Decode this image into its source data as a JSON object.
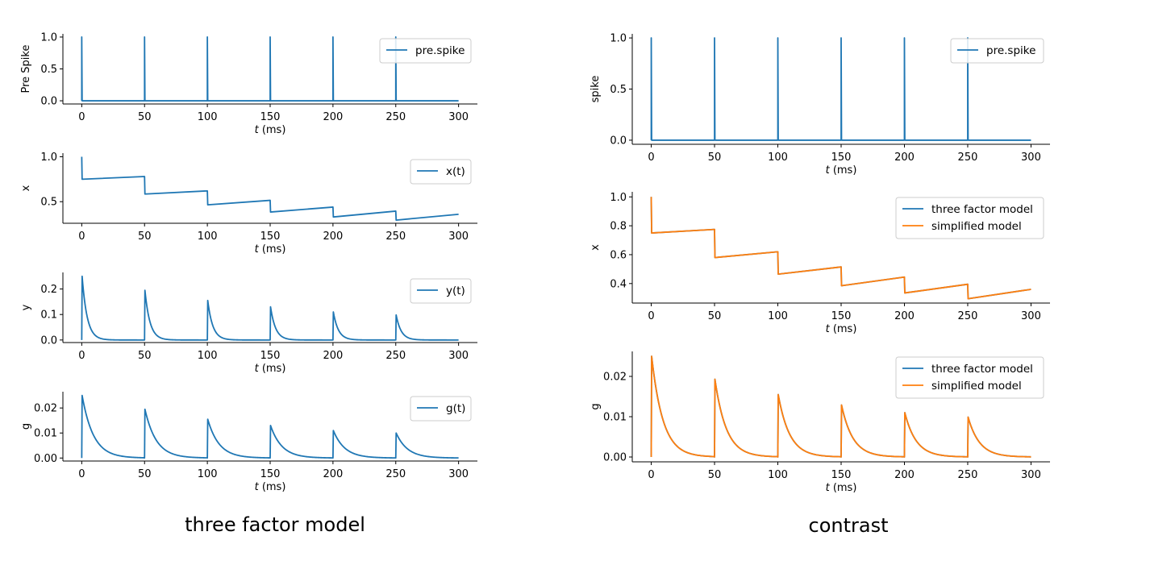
{
  "captions": {
    "left": "three factor model",
    "right": "contrast"
  },
  "colors": {
    "blue": "#1f77b4",
    "orange": "#ff7f0e"
  },
  "chart_data": [
    {
      "id": "left-pre-spike",
      "type": "line",
      "xlabel_var": "t",
      "xlabel_unit": " (ms)",
      "ylabel": "Pre Spike",
      "xlim": [
        -15,
        315
      ],
      "ylim": [
        -0.05,
        1.05
      ],
      "xticks": [
        0,
        50,
        100,
        150,
        200,
        250,
        300
      ],
      "yticks": [
        0.0,
        0.5,
        1.0
      ],
      "ytick_labels": [
        "0.0",
        "0.5",
        "1.0"
      ],
      "legend": "top-right",
      "series": [
        {
          "name": "pre.spike",
          "color": "#1f77b4",
          "kind": "spike",
          "baseline": 0,
          "peak": 1,
          "spike_times": [
            0,
            50,
            100,
            150,
            200,
            250
          ],
          "t_end": 300
        }
      ]
    },
    {
      "id": "left-x",
      "type": "line",
      "xlabel_var": "t",
      "xlabel_unit": " (ms)",
      "ylabel": "x",
      "xlim": [
        -15,
        315
      ],
      "ylim": [
        0.26,
        1.04
      ],
      "xticks": [
        0,
        50,
        100,
        150,
        200,
        250,
        300
      ],
      "yticks": [
        0.5,
        1.0
      ],
      "ytick_labels": [
        "0.5",
        "1.0"
      ],
      "legend": "top-right",
      "series": [
        {
          "name": "x(t)",
          "color": "#1f77b4",
          "kind": "sawtooth",
          "start": 1.0,
          "t_end": 300,
          "points": [
            [
              0,
              0.75,
              0.78
            ],
            [
              50,
              0.585,
              0.62
            ],
            [
              100,
              0.465,
              0.515
            ],
            [
              150,
              0.385,
              0.44
            ],
            [
              200,
              0.33,
              0.395
            ],
            [
              250,
              0.295,
              0.36
            ]
          ]
        }
      ]
    },
    {
      "id": "left-y",
      "type": "line",
      "xlabel_var": "t",
      "xlabel_unit": " (ms)",
      "ylabel": "y",
      "xlim": [
        -15,
        315
      ],
      "ylim": [
        -0.01,
        0.265
      ],
      "xticks": [
        0,
        50,
        100,
        150,
        200,
        250,
        300
      ],
      "yticks": [
        0.0,
        0.1,
        0.2
      ],
      "ytick_labels": [
        "0.0",
        "0.1",
        "0.2"
      ],
      "legend": "top-right",
      "series": [
        {
          "name": "y(t)",
          "color": "#1f77b4",
          "kind": "decay",
          "tau": 4,
          "t_end": 300,
          "peaks": [
            [
              0,
              0.25
            ],
            [
              50,
              0.195
            ],
            [
              100,
              0.155
            ],
            [
              150,
              0.13
            ],
            [
              200,
              0.11
            ],
            [
              250,
              0.098
            ]
          ]
        }
      ]
    },
    {
      "id": "left-g",
      "type": "line",
      "xlabel_var": "t",
      "xlabel_unit": " (ms)",
      "ylabel": "g",
      "xlim": [
        -15,
        315
      ],
      "ylim": [
        -0.0012,
        0.0265
      ],
      "xticks": [
        0,
        50,
        100,
        150,
        200,
        250,
        300
      ],
      "yticks": [
        0.0,
        0.01,
        0.02
      ],
      "ytick_labels": [
        "0.00",
        "0.01",
        "0.02"
      ],
      "legend": "top-right",
      "series": [
        {
          "name": "g(t)",
          "color": "#1f77b4",
          "kind": "decay",
          "tau": 9,
          "t_end": 300,
          "peaks": [
            [
              0,
              0.025
            ],
            [
              50,
              0.0195
            ],
            [
              100,
              0.0155
            ],
            [
              150,
              0.013
            ],
            [
              200,
              0.011
            ],
            [
              250,
              0.01
            ]
          ]
        }
      ]
    },
    {
      "id": "right-spike",
      "type": "line",
      "xlabel_var": "t",
      "xlabel_unit": " (ms)",
      "ylabel": "spike",
      "xlim": [
        -15,
        315
      ],
      "ylim": [
        -0.04,
        1.04
      ],
      "xticks": [
        0,
        50,
        100,
        150,
        200,
        250,
        300
      ],
      "yticks": [
        0.0,
        0.5,
        1.0
      ],
      "ytick_labels": [
        "0.0",
        "0.5",
        "1.0"
      ],
      "legend": "top-right",
      "series": [
        {
          "name": "pre.spike",
          "color": "#1f77b4",
          "kind": "spike",
          "baseline": 0,
          "peak": 1,
          "spike_times": [
            0,
            50,
            100,
            150,
            200,
            250
          ],
          "t_end": 300
        }
      ]
    },
    {
      "id": "right-x",
      "type": "line",
      "xlabel_var": "t",
      "xlabel_unit": " (ms)",
      "ylabel": "x",
      "xlim": [
        -15,
        315
      ],
      "ylim": [
        0.265,
        1.035
      ],
      "xticks": [
        0,
        50,
        100,
        150,
        200,
        250,
        300
      ],
      "yticks": [
        0.4,
        0.6,
        0.8,
        1.0
      ],
      "ytick_labels": [
        "0.4",
        "0.6",
        "0.8",
        "1.0"
      ],
      "legend": "top-right",
      "series": [
        {
          "name": "three factor model",
          "color": "#1f77b4",
          "kind": "sawtooth",
          "start": 1.0,
          "t_end": 300,
          "points": [
            [
              0,
              0.75,
              0.775
            ],
            [
              50,
              0.58,
              0.62
            ],
            [
              100,
              0.465,
              0.515
            ],
            [
              150,
              0.385,
              0.445
            ],
            [
              200,
              0.335,
              0.395
            ],
            [
              250,
              0.295,
              0.36
            ]
          ]
        },
        {
          "name": "simplified model",
          "color": "#ff7f0e",
          "kind": "sawtooth",
          "start": 1.0,
          "t_end": 300,
          "points": [
            [
              0,
              0.75,
              0.775
            ],
            [
              50,
              0.58,
              0.62
            ],
            [
              100,
              0.465,
              0.515
            ],
            [
              150,
              0.385,
              0.445
            ],
            [
              200,
              0.335,
              0.395
            ],
            [
              250,
              0.295,
              0.36
            ]
          ]
        }
      ]
    },
    {
      "id": "right-g",
      "type": "line",
      "xlabel_var": "t",
      "xlabel_unit": " (ms)",
      "ylabel": "g",
      "xlim": [
        -15,
        315
      ],
      "ylim": [
        -0.0012,
        0.0262
      ],
      "xticks": [
        0,
        50,
        100,
        150,
        200,
        250,
        300
      ],
      "yticks": [
        0.0,
        0.01,
        0.02
      ],
      "ytick_labels": [
        "0.00",
        "0.01",
        "0.02"
      ],
      "legend": "top-right",
      "series": [
        {
          "name": "three factor model",
          "color": "#1f77b4",
          "kind": "decay",
          "tau": 9,
          "t_end": 300,
          "peaks": [
            [
              0,
              0.025
            ],
            [
              50,
              0.0193
            ],
            [
              100,
              0.0155
            ],
            [
              150,
              0.0129
            ],
            [
              200,
              0.011
            ],
            [
              250,
              0.0099
            ]
          ]
        },
        {
          "name": "simplified model",
          "color": "#ff7f0e",
          "kind": "decay",
          "tau": 9,
          "t_end": 300,
          "peaks": [
            [
              0,
              0.025
            ],
            [
              50,
              0.0193
            ],
            [
              100,
              0.0155
            ],
            [
              150,
              0.0129
            ],
            [
              200,
              0.011
            ],
            [
              250,
              0.0099
            ]
          ]
        }
      ]
    }
  ]
}
